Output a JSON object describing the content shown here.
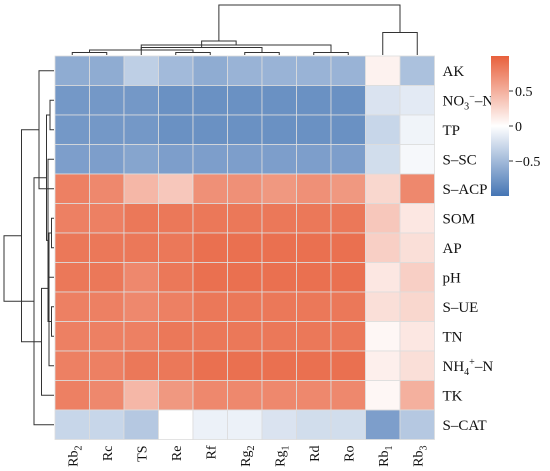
{
  "chart_data": {
    "type": "heatmap",
    "columns": [
      {
        "base": "Rb",
        "sub": "2"
      },
      {
        "base": "Rc",
        "sub": ""
      },
      {
        "base": "TS",
        "sub": ""
      },
      {
        "base": "Re",
        "sub": ""
      },
      {
        "base": "Rf",
        "sub": ""
      },
      {
        "base": "Rg",
        "sub": "2"
      },
      {
        "base": "Rg",
        "sub": "1"
      },
      {
        "base": "Rd",
        "sub": ""
      },
      {
        "base": "Ro",
        "sub": ""
      },
      {
        "base": "Rb",
        "sub": "1"
      },
      {
        "base": "Rb",
        "sub": "3"
      }
    ],
    "rows": [
      {
        "label": "AK"
      },
      {
        "label": "NO3−–N",
        "parts": [
          {
            "t": "NO"
          },
          {
            "t": "3",
            "s": "sub"
          },
          {
            "t": "−",
            "s": "sup"
          },
          {
            "t": "–N"
          }
        ]
      },
      {
        "label": "TP"
      },
      {
        "label": "S–SC"
      },
      {
        "label": "S–ACP"
      },
      {
        "label": "SOM"
      },
      {
        "label": "AP"
      },
      {
        "label": "pH"
      },
      {
        "label": "S–UE"
      },
      {
        "label": "TN"
      },
      {
        "label": "NH4+–N",
        "parts": [
          {
            "t": "NH"
          },
          {
            "t": "4",
            "s": "sub"
          },
          {
            "t": "+",
            "s": "sup"
          },
          {
            "t": "–N"
          }
        ]
      },
      {
        "label": "TK"
      },
      {
        "label": "S–CAT"
      }
    ],
    "values": [
      [
        -0.6,
        -0.6,
        -0.35,
        -0.5,
        -0.6,
        -0.55,
        -0.55,
        -0.55,
        -0.55,
        0.08,
        -0.45
      ],
      [
        -0.75,
        -0.75,
        -0.75,
        -0.8,
        -0.8,
        -0.8,
        -0.8,
        -0.8,
        -0.8,
        -0.2,
        -0.15
      ],
      [
        -0.75,
        -0.75,
        -0.75,
        -0.8,
        -0.8,
        -0.8,
        -0.8,
        -0.8,
        -0.8,
        -0.3,
        -0.08
      ],
      [
        -0.7,
        -0.7,
        -0.65,
        -0.7,
        -0.7,
        -0.7,
        -0.7,
        -0.7,
        -0.7,
        -0.25,
        -0.05
      ],
      [
        0.8,
        0.75,
        0.45,
        0.35,
        0.7,
        0.7,
        0.65,
        0.7,
        0.65,
        0.25,
        0.75
      ],
      [
        0.8,
        0.8,
        0.85,
        0.85,
        0.85,
        0.85,
        0.85,
        0.85,
        0.85,
        0.35,
        0.15
      ],
      [
        0.85,
        0.85,
        0.85,
        0.85,
        0.9,
        0.9,
        0.9,
        0.9,
        0.9,
        0.3,
        0.2
      ],
      [
        0.85,
        0.85,
        0.75,
        0.85,
        0.9,
        0.9,
        0.9,
        0.9,
        0.9,
        0.15,
        0.3
      ],
      [
        0.8,
        0.8,
        0.75,
        0.8,
        0.85,
        0.85,
        0.85,
        0.85,
        0.85,
        0.2,
        0.25
      ],
      [
        0.8,
        0.8,
        0.8,
        0.85,
        0.85,
        0.85,
        0.85,
        0.85,
        0.85,
        0.05,
        0.15
      ],
      [
        0.8,
        0.8,
        0.85,
        0.85,
        0.9,
        0.9,
        0.9,
        0.9,
        0.9,
        0.1,
        0.2
      ],
      [
        0.8,
        0.75,
        0.45,
        0.65,
        0.75,
        0.75,
        0.75,
        0.75,
        0.75,
        0.05,
        0.5
      ],
      [
        -0.3,
        -0.3,
        -0.4,
        0.0,
        -0.1,
        -0.1,
        -0.2,
        -0.25,
        -0.25,
        -0.7,
        -0.4
      ]
    ],
    "color_scale": {
      "min": -1,
      "max": 1,
      "low_color": "#4575b4",
      "mid_color": "#ffffff",
      "high_color": "#e8603c"
    },
    "colorbar": {
      "ticks": [
        {
          "value": 0.5,
          "label": "0.5"
        },
        {
          "value": 0,
          "label": "0"
        },
        {
          "value": -0.5,
          "label": "−0.5"
        }
      ]
    },
    "cell_border_color": "#dddddd",
    "dendrogram_color": "#333333",
    "col_dendrogram": {
      "links": [
        [
          1,
          2,
          0.05
        ],
        [
          4,
          5,
          0.05
        ],
        [
          6,
          7,
          0.05
        ],
        [
          8,
          9,
          0.05
        ],
        [
          12,
          13,
          0.1
        ],
        [
          14,
          3,
          0.15
        ],
        [
          15,
          16,
          0.2
        ],
        [
          18,
          17,
          0.28
        ],
        [
          10,
          11,
          0.45
        ],
        [
          19,
          20,
          1.0
        ]
      ]
    },
    "row_dendrogram": {
      "links": [
        [
          6,
          7,
          0.05
        ],
        [
          9,
          10,
          0.05
        ],
        [
          11,
          14,
          0.1
        ],
        [
          2,
          3,
          0.08
        ],
        [
          15,
          4,
          0.12
        ],
        [
          16,
          8,
          0.12
        ],
        [
          17,
          18,
          0.15
        ],
        [
          19,
          12,
          0.25
        ],
        [
          1,
          5,
          0.3
        ],
        [
          20,
          13,
          0.4
        ],
        [
          21,
          22,
          0.65
        ],
        [
          23,
          24,
          1.0
        ]
      ]
    }
  }
}
